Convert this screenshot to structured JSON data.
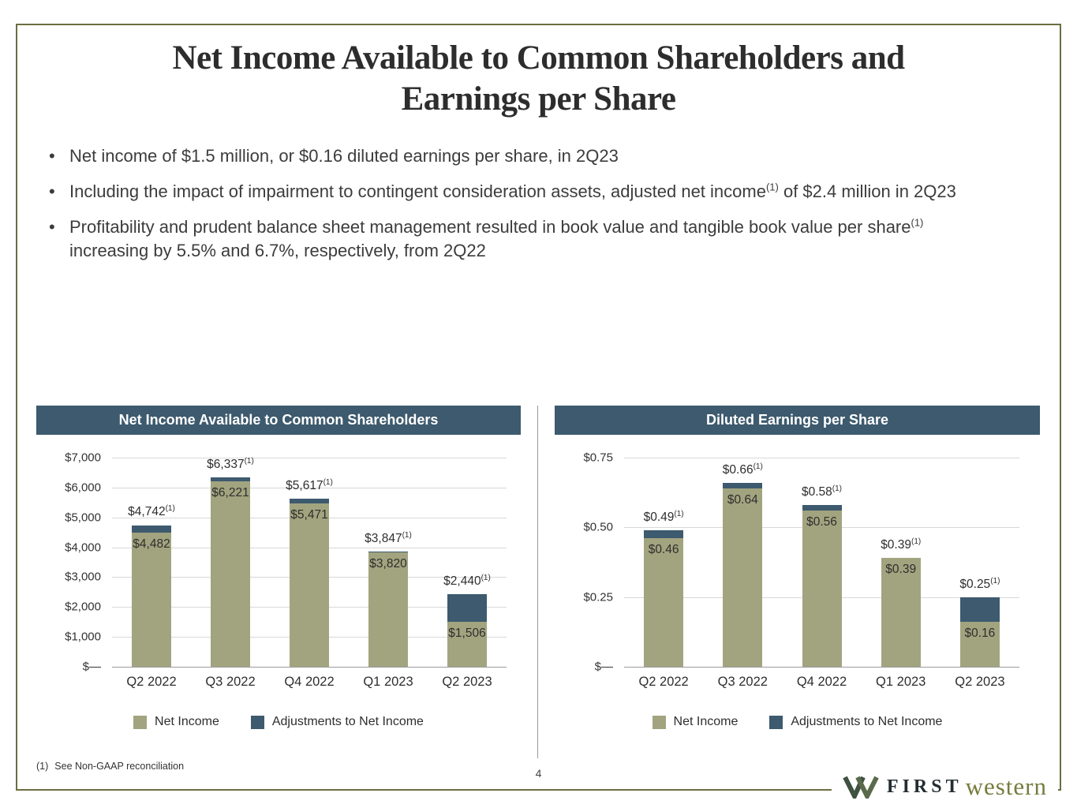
{
  "slide": {
    "title_lines": [
      "Net Income Available to Common Shareholders and",
      "Earnings per Share"
    ]
  },
  "bullets": [
    {
      "segments": [
        {
          "text": "Net income of $1.5 million, or $0.16 diluted earnings per share, in 2Q23"
        }
      ]
    },
    {
      "segments": [
        {
          "text": "Including the impact of impairment to contingent consideration assets, adjusted net income"
        },
        {
          "text": "(1)",
          "sup": true
        },
        {
          "text": " of $2.4 million in 2Q23"
        }
      ]
    },
    {
      "segments": [
        {
          "text": "Profitability and prudent balance sheet management resulted in book value and tangible book value per share"
        },
        {
          "text": "(1)",
          "sup": true
        },
        {
          "text": " increasing by 5.5% and 6.7%, respectively, from 2Q22"
        }
      ]
    }
  ],
  "chart_data": [
    {
      "type": "bar",
      "stacked": true,
      "title": "Net Income Available to Common Shareholders",
      "categories": [
        "Q2 2022",
        "Q3 2022",
        "Q4 2022",
        "Q1 2023",
        "Q2 2023"
      ],
      "series": [
        {
          "name": "Net Income",
          "color": "#a2a47f",
          "values": [
            4482,
            6221,
            5471,
            3820,
            1506
          ]
        },
        {
          "name": "Adjustments to Net Income",
          "color": "#3d5a6e",
          "values": [
            260,
            116,
            146,
            27,
            934
          ]
        }
      ],
      "totals": [
        4742,
        6337,
        5617,
        3847,
        2440
      ],
      "total_labels": [
        "$4,742",
        "$6,337",
        "$5,617",
        "$3,847",
        "$2,440"
      ],
      "net_labels": [
        "$4,482",
        "$6,221",
        "$5,471",
        "$3,820",
        "$1,506"
      ],
      "footnote_marker": "(1)",
      "y_ticks": [
        {
          "label": "$7,000",
          "value": 7000
        },
        {
          "label": "$6,000",
          "value": 6000
        },
        {
          "label": "$5,000",
          "value": 5000
        },
        {
          "label": "$4,000",
          "value": 4000
        },
        {
          "label": "$3,000",
          "value": 3000
        },
        {
          "label": "$2,000",
          "value": 2000
        },
        {
          "label": "$1,000",
          "value": 1000
        },
        {
          "label": "$—",
          "value": 0
        }
      ],
      "ymax": 7000,
      "ylim": [
        0,
        7000
      ],
      "xlabel": "",
      "ylabel": "",
      "grid": true,
      "legend_position": "bottom"
    },
    {
      "type": "bar",
      "stacked": true,
      "title": "Diluted Earnings per Share",
      "categories": [
        "Q2 2022",
        "Q3 2022",
        "Q4 2022",
        "Q1 2023",
        "Q2 2023"
      ],
      "series": [
        {
          "name": "Net Income",
          "color": "#a2a47f",
          "values": [
            0.46,
            0.64,
            0.56,
            0.39,
            0.16
          ]
        },
        {
          "name": "Adjustments to Net Income",
          "color": "#3d5a6e",
          "values": [
            0.03,
            0.02,
            0.02,
            0,
            0.09
          ]
        }
      ],
      "totals": [
        0.49,
        0.66,
        0.58,
        0.39,
        0.25
      ],
      "total_labels": [
        "$0.49",
        "$0.66",
        "$0.58",
        "$0.39",
        "$0.25"
      ],
      "net_labels": [
        "$0.46",
        "$0.64",
        "$0.56",
        "$0.39",
        "$0.16"
      ],
      "footnote_marker": "(1)",
      "y_ticks": [
        {
          "label": "$0.75",
          "value": 0.75
        },
        {
          "label": "$0.50",
          "value": 0.5
        },
        {
          "label": "$0.25",
          "value": 0.25
        },
        {
          "label": "$—",
          "value": 0
        }
      ],
      "ymax": 0.75,
      "ylim": [
        0,
        0.75
      ],
      "xlabel": "",
      "ylabel": "",
      "grid": true,
      "legend_position": "bottom"
    }
  ],
  "footer": {
    "footnote_marker": "(1)",
    "footnote_text": "See Non-GAAP reconciliation",
    "page_number": "4"
  },
  "logo": {
    "mark": "overlapping-w-mark",
    "first": "FIRST",
    "western": "western"
  },
  "colors": {
    "bar_green": "#a2a47f",
    "bar_slate": "#3d5a6e",
    "header_slate": "#3d5a6e",
    "border_olive": "#6b6f3f",
    "logo_dark": "#232c31",
    "logo_green": "#767c3e"
  }
}
